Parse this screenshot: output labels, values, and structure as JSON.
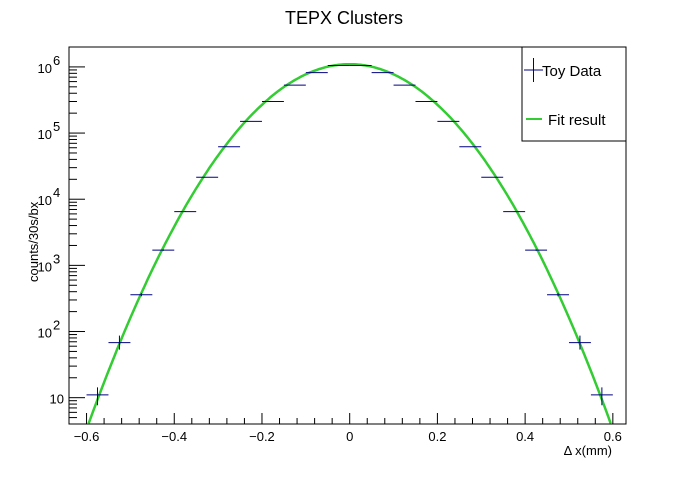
{
  "chart_data": {
    "type": "scatter",
    "title": "TEPX Clusters",
    "xlabel": "Δ x(mm)",
    "ylabel": "counts/30s/bx",
    "xlim": [
      -0.64,
      0.63
    ],
    "ylim": [
      4,
      2000000
    ],
    "y_scale": "log",
    "grid": false,
    "legend_position": "top-right",
    "x_ticks": [
      -0.6,
      -0.4,
      -0.2,
      0,
      0.2,
      0.4,
      0.6
    ],
    "x_tick_labels": [
      "−0.6",
      "−0.4",
      "−0.2",
      "0",
      "0.2",
      "0.4",
      "0.6"
    ],
    "y_ticks": [
      {
        "value": 10,
        "base": "10",
        "exp": ""
      },
      {
        "value": 100,
        "base": "10",
        "exp": "2"
      },
      {
        "value": 1000,
        "base": "10",
        "exp": "3"
      },
      {
        "value": 10000,
        "base": "10",
        "exp": "4"
      },
      {
        "value": 100000,
        "base": "10",
        "exp": "5"
      },
      {
        "value": 1000000,
        "base": "10",
        "exp": "6"
      }
    ],
    "series": [
      {
        "name": "Toy Data",
        "kind": "points",
        "color": "#000080",
        "bin_halfwidth": 0.025,
        "x": [
          -0.575,
          -0.525,
          -0.475,
          -0.425,
          -0.375,
          -0.325,
          -0.275,
          -0.225,
          -0.175,
          -0.125,
          -0.075,
          -0.025,
          0.025,
          0.075,
          0.125,
          0.175,
          0.225,
          0.275,
          0.325,
          0.375,
          0.425,
          0.475,
          0.525,
          0.575
        ],
        "y": [
          11,
          68,
          360,
          1700,
          6500,
          21500,
          62000,
          150000,
          300000,
          530000,
          820000,
          1050000,
          1050000,
          820000,
          530000,
          300000,
          150000,
          62000,
          21500,
          6500,
          1700,
          360,
          68,
          11
        ]
      },
      {
        "name": "Fit result",
        "kind": "line",
        "color": "#33cc33",
        "amplitude": 1100000,
        "mean": 0.0,
        "sigma": 0.119,
        "x_range": [
          -0.6,
          0.6
        ]
      }
    ]
  }
}
